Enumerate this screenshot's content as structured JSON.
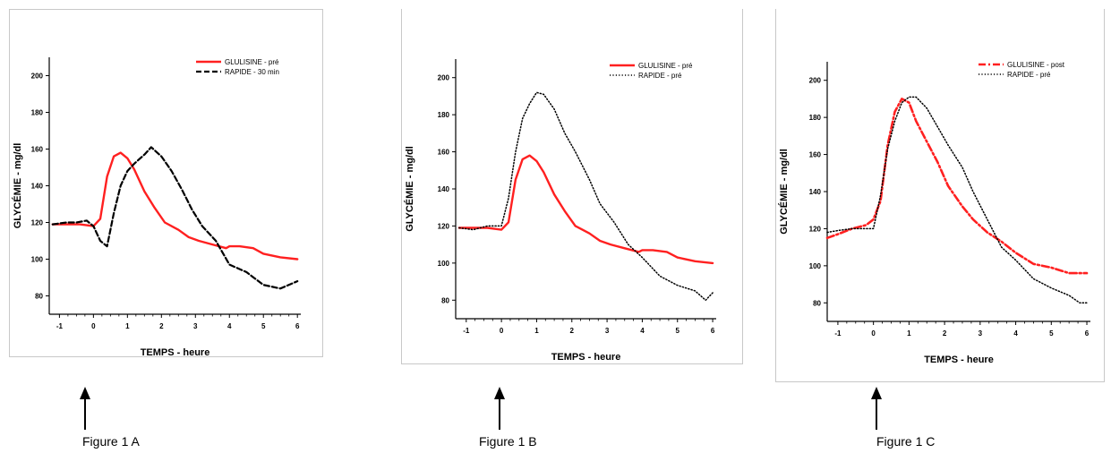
{
  "chart_data": [
    {
      "type": "line",
      "caption": "Figure 1 A",
      "xlabel": "TEMPS - heure",
      "ylabel": "GLYCÉMIE - mg/dl",
      "xlim": [
        -1.3,
        6.1
      ],
      "ylim": [
        70,
        210
      ],
      "xticks": [
        "-1",
        "0",
        "1",
        "2",
        "3",
        "4",
        "5",
        "6"
      ],
      "yticks": [
        "80",
        "100",
        "120",
        "140",
        "160",
        "180",
        "200"
      ],
      "legend": "top-right",
      "series": [
        {
          "name": "GLULISINE - pré",
          "color": "#ff2020",
          "style": "solid",
          "x": [
            -1.2,
            -0.8,
            -0.4,
            0.0,
            0.2,
            0.4,
            0.6,
            0.8,
            1.0,
            1.2,
            1.5,
            1.8,
            2.1,
            2.5,
            2.8,
            3.1,
            3.5,
            3.9,
            4.0,
            4.3,
            4.7,
            5.0,
            5.5,
            6.0
          ],
          "y": [
            119,
            119,
            119,
            118,
            122,
            145,
            156,
            158,
            155,
            149,
            137,
            128,
            120,
            116,
            112,
            110,
            108,
            106,
            107,
            107,
            106,
            103,
            101,
            100
          ]
        },
        {
          "name": "RAPIDE - 30 min",
          "color": "#000000",
          "style": "dashed",
          "x": [
            -1.2,
            -0.8,
            -0.5,
            -0.2,
            0.0,
            0.2,
            0.4,
            0.6,
            0.8,
            1.0,
            1.2,
            1.5,
            1.7,
            2.0,
            2.3,
            2.6,
            2.9,
            3.2,
            3.6,
            4.0,
            4.5,
            5.0,
            5.5,
            6.0
          ],
          "y": [
            119,
            120,
            120,
            121,
            118,
            110,
            107,
            125,
            140,
            148,
            152,
            157,
            161,
            156,
            148,
            138,
            127,
            118,
            110,
            97,
            93,
            86,
            84,
            88
          ]
        }
      ]
    },
    {
      "type": "line",
      "caption": "Figure 1 B",
      "xlabel": "TEMPS - heure",
      "ylabel": "GLYCÉMIE - mg/dl",
      "xlim": [
        -1.3,
        6.1
      ],
      "ylim": [
        70,
        210
      ],
      "xticks": [
        "-1",
        "0",
        "1",
        "2",
        "3",
        "4",
        "5",
        "6"
      ],
      "yticks": [
        "80",
        "100",
        "120",
        "140",
        "160",
        "180",
        "200"
      ],
      "legend": "top-right",
      "series": [
        {
          "name": "GLULISINE - pré",
          "color": "#ff2020",
          "style": "solid",
          "x": [
            -1.2,
            -0.8,
            -0.4,
            0.0,
            0.2,
            0.4,
            0.6,
            0.8,
            1.0,
            1.2,
            1.5,
            1.8,
            2.1,
            2.5,
            2.8,
            3.1,
            3.5,
            3.9,
            4.0,
            4.3,
            4.7,
            5.0,
            5.5,
            6.0
          ],
          "y": [
            119,
            119,
            119,
            118,
            122,
            145,
            156,
            158,
            155,
            149,
            137,
            128,
            120,
            116,
            112,
            110,
            108,
            106,
            107,
            107,
            106,
            103,
            101,
            100
          ]
        },
        {
          "name": "RAPIDE - pré",
          "color": "#000000",
          "style": "dotted",
          "x": [
            -1.2,
            -0.8,
            -0.4,
            0.0,
            0.2,
            0.4,
            0.6,
            0.8,
            1.0,
            1.2,
            1.5,
            1.8,
            2.1,
            2.5,
            2.8,
            3.2,
            3.6,
            4.0,
            4.5,
            5.0,
            5.5,
            5.8,
            6.0
          ],
          "y": [
            119,
            118,
            120,
            120,
            135,
            160,
            178,
            186,
            192,
            191,
            183,
            170,
            160,
            145,
            132,
            122,
            110,
            103,
            93,
            88,
            85,
            80,
            84
          ]
        }
      ]
    },
    {
      "type": "line",
      "caption": "Figure 1 C",
      "xlabel": "TEMPS - heure",
      "ylabel": "GLYCÉMIE - mg/dl",
      "xlim": [
        -1.3,
        6.1
      ],
      "ylim": [
        70,
        210
      ],
      "xticks": [
        "-1",
        "0",
        "1",
        "2",
        "3",
        "4",
        "5",
        "6"
      ],
      "yticks": [
        "80",
        "100",
        "120",
        "140",
        "160",
        "180",
        "200"
      ],
      "legend": "top-right",
      "series": [
        {
          "name": "GLULISINE - post",
          "color": "#ff2020",
          "style": "dashdot",
          "x": [
            -1.3,
            -1.0,
            -0.6,
            -0.2,
            0.0,
            0.2,
            0.4,
            0.6,
            0.8,
            1.0,
            1.2,
            1.5,
            1.8,
            2.1,
            2.5,
            2.8,
            3.2,
            3.6,
            4.0,
            4.5,
            5.0,
            5.5,
            6.0
          ],
          "y": [
            115,
            117,
            120,
            122,
            125,
            135,
            165,
            183,
            190,
            188,
            178,
            167,
            156,
            143,
            132,
            125,
            118,
            113,
            107,
            101,
            99,
            96,
            96
          ]
        },
        {
          "name": "RAPIDE - pré",
          "color": "#000000",
          "style": "dotted",
          "x": [
            -1.3,
            -1.0,
            -0.6,
            -0.2,
            0.0,
            0.2,
            0.4,
            0.6,
            0.8,
            1.0,
            1.2,
            1.5,
            1.8,
            2.1,
            2.5,
            2.8,
            3.2,
            3.6,
            4.0,
            4.5,
            5.0,
            5.5,
            5.8,
            6.0
          ],
          "y": [
            118,
            119,
            120,
            120,
            120,
            138,
            163,
            178,
            188,
            191,
            191,
            185,
            175,
            165,
            153,
            140,
            125,
            110,
            103,
            93,
            88,
            84,
            80,
            80
          ]
        }
      ]
    }
  ]
}
